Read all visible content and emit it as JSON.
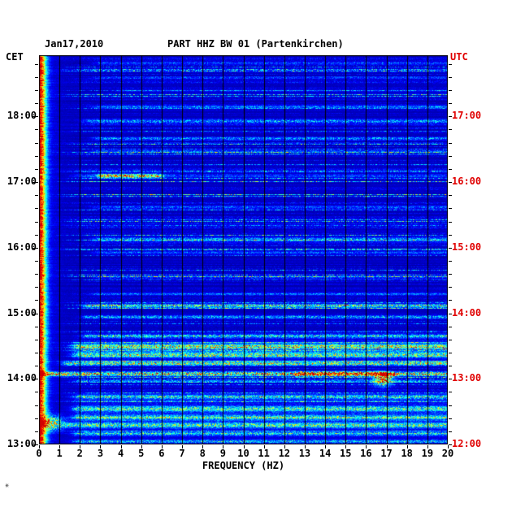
{
  "header": {
    "date": "Jan17,2010",
    "title": "PART HHZ BW 01 (Partenkirchen)"
  },
  "axes": {
    "left_unit": "CET",
    "right_unit": "UTC",
    "x_label": "FREQUENCY (HZ)"
  },
  "footer_mark": "✳",
  "colors": {
    "bg": "#ffffff",
    "text": "#000000",
    "red_label": "#e00000",
    "grid": "#000000",
    "spectrogram_background": "#0000a8"
  },
  "chart_data": {
    "type": "heatmap",
    "subtype": "seismic-spectrogram",
    "station": "PART HHZ BW 01 (Partenkirchen)",
    "date": "Jan17,2010",
    "xlabel": "FREQUENCY (HZ)",
    "x_range_hz": [
      0,
      20
    ],
    "x_tick_step_hz": 1,
    "x_ticks": [
      "0",
      "1",
      "2",
      "3",
      "4",
      "5",
      "6",
      "7",
      "8",
      "9",
      "10",
      "11",
      "12",
      "13",
      "14",
      "15",
      "16",
      "17",
      "18",
      "19",
      "20"
    ],
    "time_top_cet": 18.9333,
    "time_bottom_cet": 13.0,
    "utc_offset_hours": -1,
    "left_ticks_cet": [
      "18:00",
      "17:00",
      "16:00",
      "15:00",
      "14:00",
      "13:00"
    ],
    "right_ticks_utc": [
      "17:00",
      "16:00",
      "15:00",
      "14:00",
      "13:00",
      "12:00"
    ],
    "minor_tick_minutes": 12,
    "grid_hz": [
      1,
      2,
      3,
      4,
      5,
      6,
      7,
      8,
      9,
      10,
      11,
      12,
      13,
      14,
      15,
      16,
      17,
      18,
      19
    ],
    "colormap": "jet",
    "legend": "off",
    "seed": 20100117,
    "background_value": 0.035,
    "microseism": {
      "center_hz": 0,
      "sigma_hz": 0.22,
      "value": 0.6
    },
    "events": [
      {
        "t": 18.82,
        "amp": 0.2,
        "f_lo": 3,
        "f_hi": 20,
        "sigma": 1.2
      },
      {
        "t": 18.6,
        "amp": 0.16,
        "f_lo": 3,
        "f_hi": 20,
        "sigma": 1.0
      },
      {
        "t": 18.4,
        "amp": 0.14,
        "f_lo": 4,
        "f_hi": 20,
        "sigma": 1.0
      },
      {
        "t": 18.15,
        "amp": 0.22,
        "f_lo": 3,
        "f_hi": 20,
        "sigma": 1.4
      },
      {
        "t": 17.93,
        "amp": 0.28,
        "f_lo": 2.5,
        "f_hi": 20,
        "sigma": 1.8
      },
      {
        "t": 17.67,
        "amp": 0.28,
        "f_lo": 3,
        "f_hi": 20,
        "sigma": 1.4
      },
      {
        "t": 17.48,
        "amp": 0.18,
        "f_lo": 3,
        "f_hi": 20,
        "sigma": 1.2
      },
      {
        "t": 17.1,
        "amp": 0.8,
        "f_lo": 3.2,
        "f_hi": 5.6,
        "sigma": 1.6
      },
      {
        "t": 17.1,
        "amp": 0.18,
        "f_lo": 2,
        "f_hi": 20,
        "sigma": 1.5
      },
      {
        "t": 16.62,
        "amp": 0.2,
        "f_lo": 3,
        "f_hi": 20,
        "sigma": 1.3
      },
      {
        "t": 16.13,
        "amp": 0.28,
        "f_lo": 3,
        "f_hi": 20,
        "sigma": 2.0
      },
      {
        "t": 15.93,
        "amp": 0.2,
        "f_lo": 3,
        "f_hi": 20,
        "sigma": 1.3
      },
      {
        "t": 15.55,
        "amp": 0.16,
        "f_lo": 3,
        "f_hi": 20,
        "sigma": 1.2
      },
      {
        "t": 15.3,
        "amp": 0.18,
        "f_lo": 3,
        "f_hi": 20,
        "sigma": 1.2
      },
      {
        "t": 15.12,
        "amp": 0.4,
        "f_lo": 2.5,
        "f_hi": 20,
        "sigma": 1.8
      },
      {
        "t": 14.95,
        "amp": 0.32,
        "f_lo": 2.5,
        "f_hi": 20,
        "sigma": 1.4
      },
      {
        "t": 14.66,
        "amp": 0.34,
        "f_lo": 2.5,
        "f_hi": 20,
        "sigma": 1.8
      },
      {
        "t": 14.5,
        "amp": 0.45,
        "f_lo": 2,
        "f_hi": 20,
        "sigma": 2.0
      },
      {
        "t": 14.45,
        "amp": 0.15,
        "f_lo": 2,
        "f_hi": 20,
        "sigma": 9
      },
      {
        "t": 14.37,
        "amp": 0.5,
        "f_lo": 2,
        "f_hi": 20,
        "sigma": 2.0
      },
      {
        "t": 14.24,
        "amp": 0.55,
        "f_lo": 1.5,
        "f_hi": 20,
        "sigma": 1.8
      },
      {
        "t": 14.08,
        "amp": 0.8,
        "f_lo": 0,
        "f_hi": 20,
        "sigma": 1.7,
        "hot": [
          12.5,
          17.4
        ],
        "hot_gain": 2.0
      },
      {
        "t": 14.0,
        "amp": 1.0,
        "fc": 16.8,
        "fs": 0.28,
        "sigma": 5
      },
      {
        "t": 13.97,
        "amp": 0.28,
        "f_lo": 2,
        "f_hi": 20,
        "sigma": 1.2
      },
      {
        "t": 13.73,
        "amp": 0.38,
        "f_lo": 2,
        "f_hi": 20,
        "sigma": 1.8
      },
      {
        "t": 13.55,
        "amp": 0.42,
        "f_lo": 2,
        "f_hi": 20,
        "sigma": 2.0
      },
      {
        "t": 13.45,
        "amp": 0.13,
        "f_lo": 2,
        "f_hi": 20,
        "sigma": 16
      },
      {
        "t": 13.42,
        "amp": 0.38,
        "f_lo": 2,
        "f_hi": 20,
        "sigma": 1.8
      },
      {
        "t": 13.33,
        "amp": 0.75,
        "fc": 0.5,
        "fs": 0.45,
        "sigma": 6
      },
      {
        "t": 13.3,
        "amp": 0.42,
        "f_lo": 1.5,
        "f_hi": 20,
        "sigma": 2.2
      },
      {
        "t": 13.17,
        "amp": 0.36,
        "f_lo": 2,
        "f_hi": 20,
        "sigma": 1.8
      },
      {
        "t": 13.05,
        "amp": 0.32,
        "f_lo": 2,
        "f_hi": 20,
        "sigma": 1.6
      }
    ]
  }
}
